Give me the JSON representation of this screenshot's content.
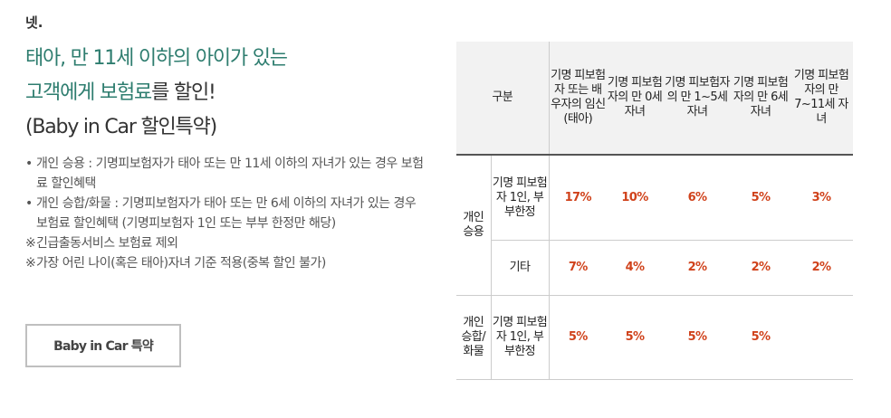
{
  "step": "넷.",
  "title": {
    "line1": "태아, 만 11세 이하의 아이가 있는",
    "line2_green": "고객에게 보험료",
    "line2_dark": "를 할인!",
    "line3": "(Baby in Car 할인특약)"
  },
  "bullets": [
    {
      "mark": "•",
      "text": "개인 승용 : 기명피보험자가 태아 또는 만 11세 이하의 자녀가 있는 경우 보험료 할인혜택"
    },
    {
      "mark": "•",
      "text": "개인 승합/화물 : 기명피보험자가 태아 또는 만 6세 이하의 자녀가 있는 경우 보험료 할인혜택 (기명피보험자 1인 또는 부부 한정만 해당)"
    },
    {
      "mark": "※",
      "text": "긴급출동서비스 보험료 제외"
    },
    {
      "mark": "※",
      "text": "가장 어린 나이(혹은 태아)자녀 기준 적용(중복 할인 불가)"
    }
  ],
  "button": {
    "label": "Baby in Car 특약"
  },
  "table": {
    "header_division": "구분",
    "columns": [
      "기명 피보험자 또는 배우자의 임신(태아)",
      "기명 피보험자의 만 0세 자녀",
      "기명 피보험자의 만 1~5세 자녀",
      "기명 피보험자의 만 6세 자녀",
      "기명 피보험자의 만 7~11세 자녀"
    ],
    "groups": [
      {
        "name": "개인 승용",
        "rows": [
          {
            "label": "기명 피보험자 1인, 부부한정",
            "values": [
              "17%",
              "10%",
              "6%",
              "5%",
              "3%"
            ]
          },
          {
            "label": "기타",
            "values": [
              "7%",
              "4%",
              "2%",
              "2%",
              "2%"
            ]
          }
        ]
      },
      {
        "name": "개인 승합/ 화물",
        "rows": [
          {
            "label": "기명 피보험자 1인, 부부한정",
            "values": [
              "5%",
              "5%",
              "5%",
              "5%",
              ""
            ]
          }
        ]
      }
    ]
  }
}
